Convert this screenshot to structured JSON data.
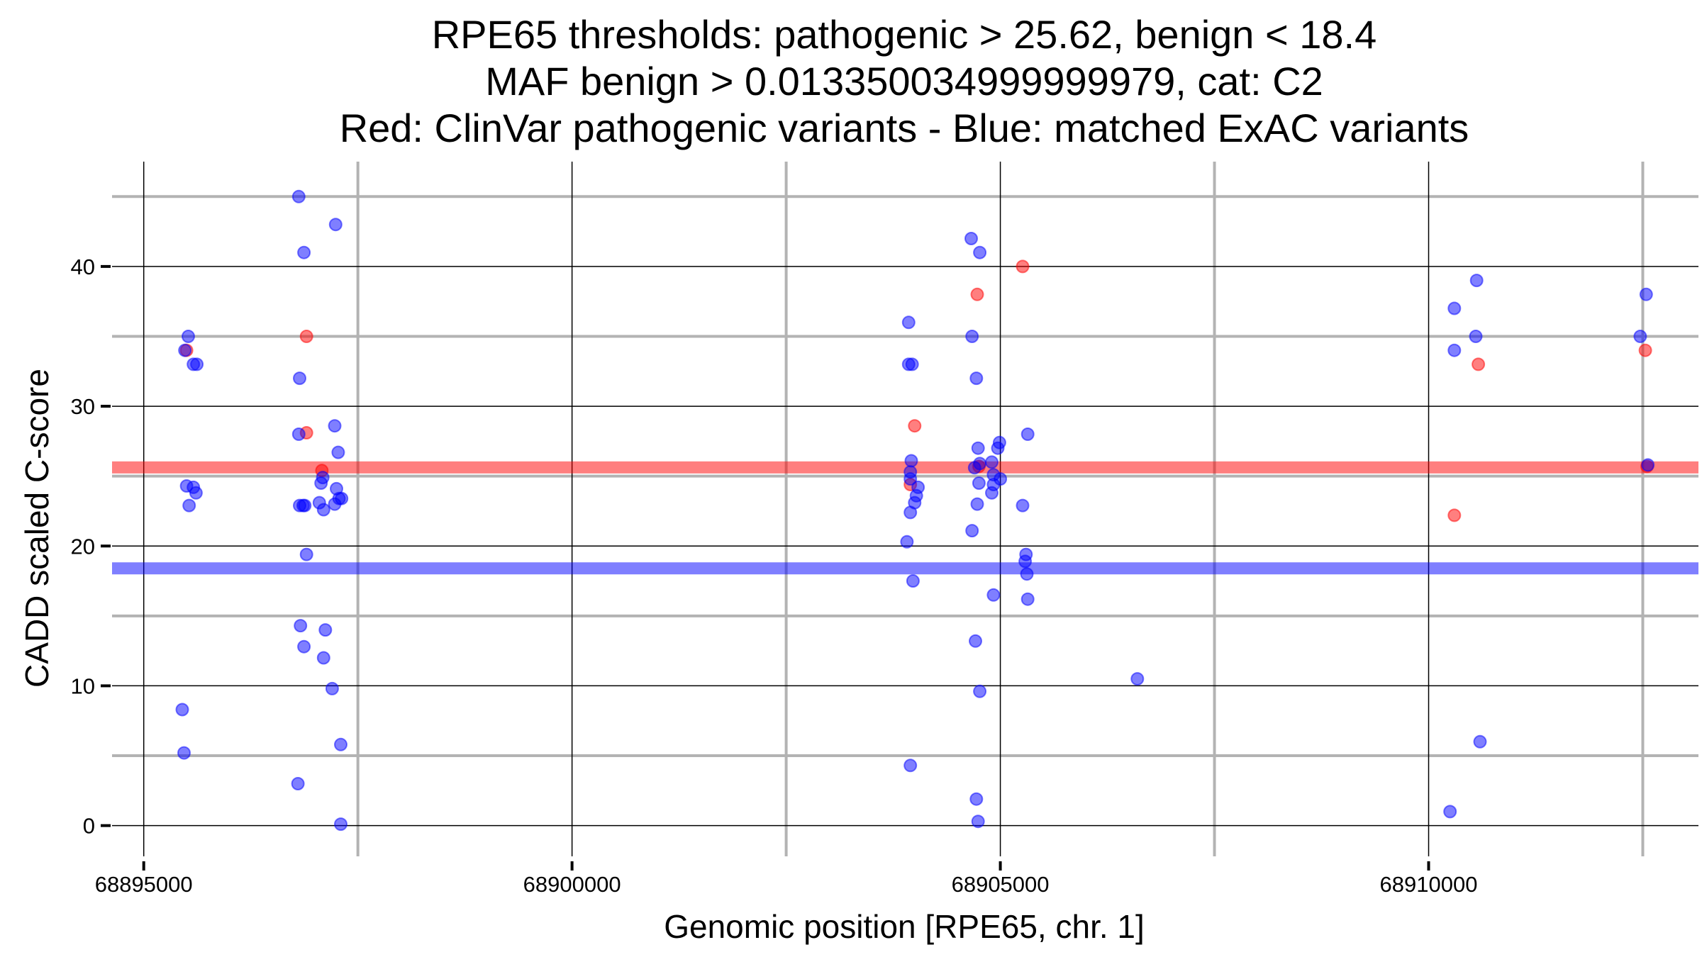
{
  "chart_data": {
    "type": "scatter",
    "title_lines": [
      "RPE65 thresholds: pathogenic > 25.62, benign < 18.4",
      "MAF benign > 0.013350034999999979, cat: C2",
      "Red: ClinVar pathogenic variants - Blue: matched ExAC variants"
    ],
    "xlabel": "Genomic position [RPE65, chr. 1]",
    "ylabel": "CADD scaled C-score",
    "xlim": [
      68894630,
      68913150
    ],
    "ylim": [
      -2.2,
      47.5
    ],
    "x_major_ticks": [
      68895000,
      68900000,
      68905000,
      68910000
    ],
    "x_tick_labels": [
      "68895000",
      "68900000",
      "68905000",
      "68910000"
    ],
    "x_minor_ticks": [
      68897500,
      68902500,
      68907500,
      68912500
    ],
    "y_major_ticks": [
      0,
      10,
      20,
      30,
      40
    ],
    "y_tick_labels": [
      "0",
      "10",
      "20",
      "30",
      "40"
    ],
    "y_minor_ticks": [
      5,
      15,
      25,
      35,
      45
    ],
    "colors": {
      "pathogenic": "#ff0000",
      "benign": "#0000ff",
      "major_grid": "#000000",
      "minor_grid": "#b3b3b3"
    },
    "thresholds": [
      {
        "name": "pathogenic",
        "value": 25.62,
        "color": "#ff0000"
      },
      {
        "name": "benign",
        "value": 18.4,
        "color": "#0000ff"
      }
    ],
    "series": [
      {
        "name": "ClinVar pathogenic variants",
        "color": "#ff0000",
        "points": [
          [
            68895500,
            34
          ],
          [
            68896900,
            35
          ],
          [
            68896900,
            28.1
          ],
          [
            68897080,
            25.4
          ],
          [
            68903950,
            24.4
          ],
          [
            68904000,
            28.6
          ],
          [
            68904730,
            38
          ],
          [
            68904750,
            25.7
          ],
          [
            68905260,
            40
          ],
          [
            68910300,
            22.2
          ],
          [
            68910580,
            33
          ],
          [
            68912530,
            34
          ],
          [
            68912550,
            25.7
          ]
        ]
      },
      {
        "name": "matched ExAC variants",
        "color": "#0000ff",
        "points": [
          [
            68895480,
            34
          ],
          [
            68895520,
            35
          ],
          [
            68895580,
            33
          ],
          [
            68895620,
            33
          ],
          [
            68895500,
            24.3
          ],
          [
            68895580,
            24.2
          ],
          [
            68895610,
            23.8
          ],
          [
            68895530,
            22.9
          ],
          [
            68895450,
            8.3
          ],
          [
            68895470,
            5.2
          ],
          [
            68896810,
            45
          ],
          [
            68896870,
            41
          ],
          [
            68896820,
            32
          ],
          [
            68896810,
            28
          ],
          [
            68896820,
            22.9
          ],
          [
            68896860,
            22.9
          ],
          [
            68896880,
            22.9
          ],
          [
            68896900,
            19.4
          ],
          [
            68896830,
            14.3
          ],
          [
            68896870,
            12.8
          ],
          [
            68896800,
            3
          ],
          [
            68897070,
            24.5
          ],
          [
            68897090,
            24.9
          ],
          [
            68897050,
            23.1
          ],
          [
            68897100,
            22.6
          ],
          [
            68897120,
            14
          ],
          [
            68897100,
            12
          ],
          [
            68897200,
            9.8
          ],
          [
            68897230,
            28.6
          ],
          [
            68897270,
            26.7
          ],
          [
            68897250,
            24.1
          ],
          [
            68897230,
            23
          ],
          [
            68897280,
            23.4
          ],
          [
            68897310,
            23.4
          ],
          [
            68897240,
            43
          ],
          [
            68897300,
            5.8
          ],
          [
            68897300,
            0.1
          ],
          [
            68903930,
            36
          ],
          [
            68903930,
            33
          ],
          [
            68903970,
            33
          ],
          [
            68903960,
            26.1
          ],
          [
            68903950,
            25.3
          ],
          [
            68903950,
            24.8
          ],
          [
            68904040,
            24.2
          ],
          [
            68904020,
            23.6
          ],
          [
            68904000,
            23.1
          ],
          [
            68903950,
            22.4
          ],
          [
            68903910,
            20.3
          ],
          [
            68903980,
            17.5
          ],
          [
            68903950,
            4.3
          ],
          [
            68904660,
            42
          ],
          [
            68904760,
            41
          ],
          [
            68904670,
            35
          ],
          [
            68904720,
            32
          ],
          [
            68904740,
            27
          ],
          [
            68904700,
            25.6
          ],
          [
            68904760,
            25.9
          ],
          [
            68904750,
            24.5
          ],
          [
            68904730,
            23
          ],
          [
            68904670,
            21.1
          ],
          [
            68904710,
            13.2
          ],
          [
            68904760,
            9.6
          ],
          [
            68904720,
            1.9
          ],
          [
            68904740,
            0.3
          ],
          [
            68904900,
            26
          ],
          [
            68904920,
            25.1
          ],
          [
            68904920,
            24.4
          ],
          [
            68904900,
            23.8
          ],
          [
            68904920,
            16.5
          ],
          [
            68904970,
            27
          ],
          [
            68904990,
            27.4
          ],
          [
            68905000,
            24.8
          ],
          [
            68905320,
            28
          ],
          [
            68905260,
            22.9
          ],
          [
            68905300,
            19.4
          ],
          [
            68905290,
            18.9
          ],
          [
            68905310,
            18
          ],
          [
            68905320,
            16.2
          ],
          [
            68906600,
            10.5
          ],
          [
            68910300,
            37
          ],
          [
            68910300,
            34
          ],
          [
            68910560,
            39
          ],
          [
            68910550,
            35
          ],
          [
            68910600,
            6
          ],
          [
            68910250,
            1
          ],
          [
            68912470,
            35
          ],
          [
            68912540,
            38
          ],
          [
            68912560,
            25.8
          ]
        ]
      }
    ]
  }
}
